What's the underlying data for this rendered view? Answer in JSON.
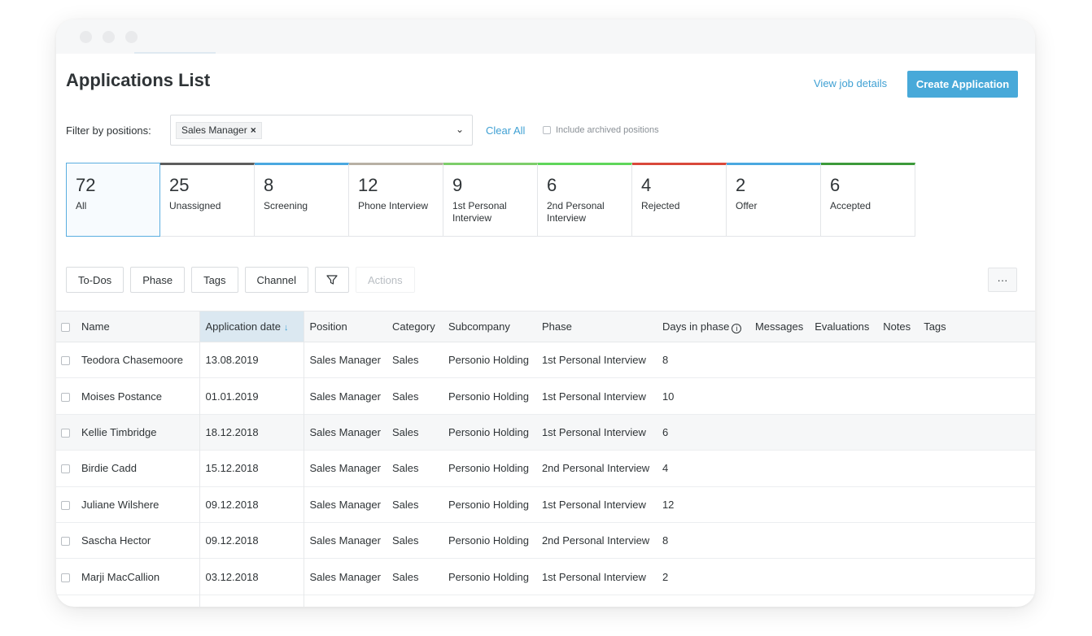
{
  "page": {
    "title": "Applications List",
    "view_job_details": "View job details",
    "create_application": "Create Application"
  },
  "filter": {
    "label": "Filter by positions:",
    "selected_chip": "Sales Manager",
    "chip_remove": "×",
    "caret": "⌄",
    "clear_all": "Clear All",
    "include_archived": "Include archived positions"
  },
  "phases": [
    {
      "count": "72",
      "label": "All",
      "color": "",
      "active": true
    },
    {
      "count": "25",
      "label": "Unassigned",
      "color": "#5d5d5d",
      "active": false
    },
    {
      "count": "8",
      "label": "Screening",
      "color": "#4aa8e0",
      "active": false
    },
    {
      "count": "12",
      "label": "Phone Interview",
      "color": "#b8b0a4",
      "active": false
    },
    {
      "count": "9",
      "label": "1st Personal Interview",
      "color": "#7dce6a",
      "active": false
    },
    {
      "count": "6",
      "label": "2nd Personal Interview",
      "color": "#5fd65a",
      "active": false
    },
    {
      "count": "4",
      "label": "Rejected",
      "color": "#d9483b",
      "active": false
    },
    {
      "count": "2",
      "label": "Offer",
      "color": "#4aa8e0",
      "active": false
    },
    {
      "count": "6",
      "label": "Accepted",
      "color": "#3c9a3a",
      "active": false
    }
  ],
  "toolbar": {
    "todos": "To-Dos",
    "phase": "Phase",
    "tags": "Tags",
    "channel": "Channel",
    "actions": "Actions",
    "more": "···"
  },
  "table": {
    "headers": {
      "name": "Name",
      "application_date": "Application date",
      "sort_arrow": "↓",
      "position": "Position",
      "category": "Category",
      "subcompany": "Subcompany",
      "phase": "Phase",
      "days_in_phase": "Days in phase",
      "info": "i",
      "messages": "Messages",
      "evaluations": "Evaluations",
      "notes": "Notes",
      "tags": "Tags"
    },
    "rows": [
      {
        "name": "Teodora Chasemoore",
        "date": "13.08.2019",
        "position": "Sales Manager",
        "category": "Sales",
        "subcompany": "Personio Holding",
        "phase": "1st Personal Interview",
        "days": "8"
      },
      {
        "name": "Moises Postance",
        "date": "01.01.2019",
        "position": "Sales Manager",
        "category": "Sales",
        "subcompany": "Personio Holding",
        "phase": "1st Personal Interview",
        "days": "10"
      },
      {
        "name": "Kellie Timbridge",
        "date": "18.12.2018",
        "position": "Sales Manager",
        "category": "Sales",
        "subcompany": "Personio Holding",
        "phase": "1st Personal Interview",
        "days": "6"
      },
      {
        "name": "Birdie Cadd",
        "date": "15.12.2018",
        "position": "Sales Manager",
        "category": "Sales",
        "subcompany": "Personio Holding",
        "phase": "2nd Personal Interview",
        "days": "4"
      },
      {
        "name": "Juliane Wilshere",
        "date": "09.12.2018",
        "position": "Sales Manager",
        "category": "Sales",
        "subcompany": "Personio Holding",
        "phase": "1st Personal Interview",
        "days": "12"
      },
      {
        "name": "Sascha Hector",
        "date": "09.12.2018",
        "position": "Sales Manager",
        "category": "Sales",
        "subcompany": "Personio Holding",
        "phase": "2nd Personal Interview",
        "days": "8"
      },
      {
        "name": "Marji MacCallion",
        "date": "03.12.2018",
        "position": "Sales Manager",
        "category": "Sales",
        "subcompany": "Personio Holding",
        "phase": "1st Personal Interview",
        "days": "2"
      }
    ]
  },
  "colors": {
    "accent": "#48a9d9",
    "link": "#3fa0d3"
  }
}
